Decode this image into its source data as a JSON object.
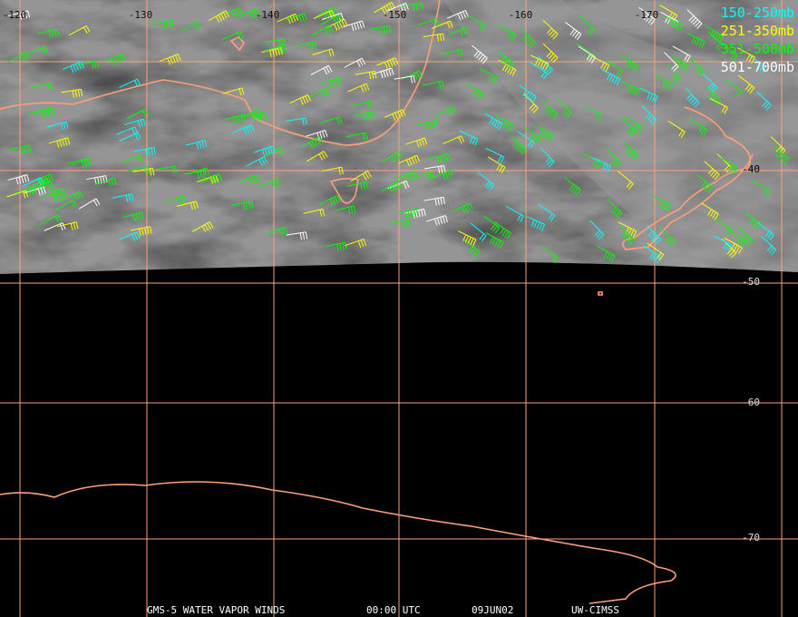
{
  "map": {
    "longitude_labels": [
      "-120",
      "-130",
      "-140",
      "-150",
      "-160",
      "-170"
    ],
    "latitude_labels": [
      "-40",
      "-50",
      "-60",
      "-70"
    ],
    "legend": [
      {
        "label": "150-250mb",
        "color": "#00ffff"
      },
      {
        "label": "251-350mb",
        "color": "#ffff00"
      },
      {
        "label": "351-500mb",
        "color": "#00ff00"
      },
      {
        "label": "501-700mb",
        "color": "#ffffff"
      }
    ],
    "footer": [
      "GMS-5 WATER VAPOR WINDS",
      "00:00 UTC",
      "09JUN02",
      "UW-CIMSS"
    ]
  }
}
